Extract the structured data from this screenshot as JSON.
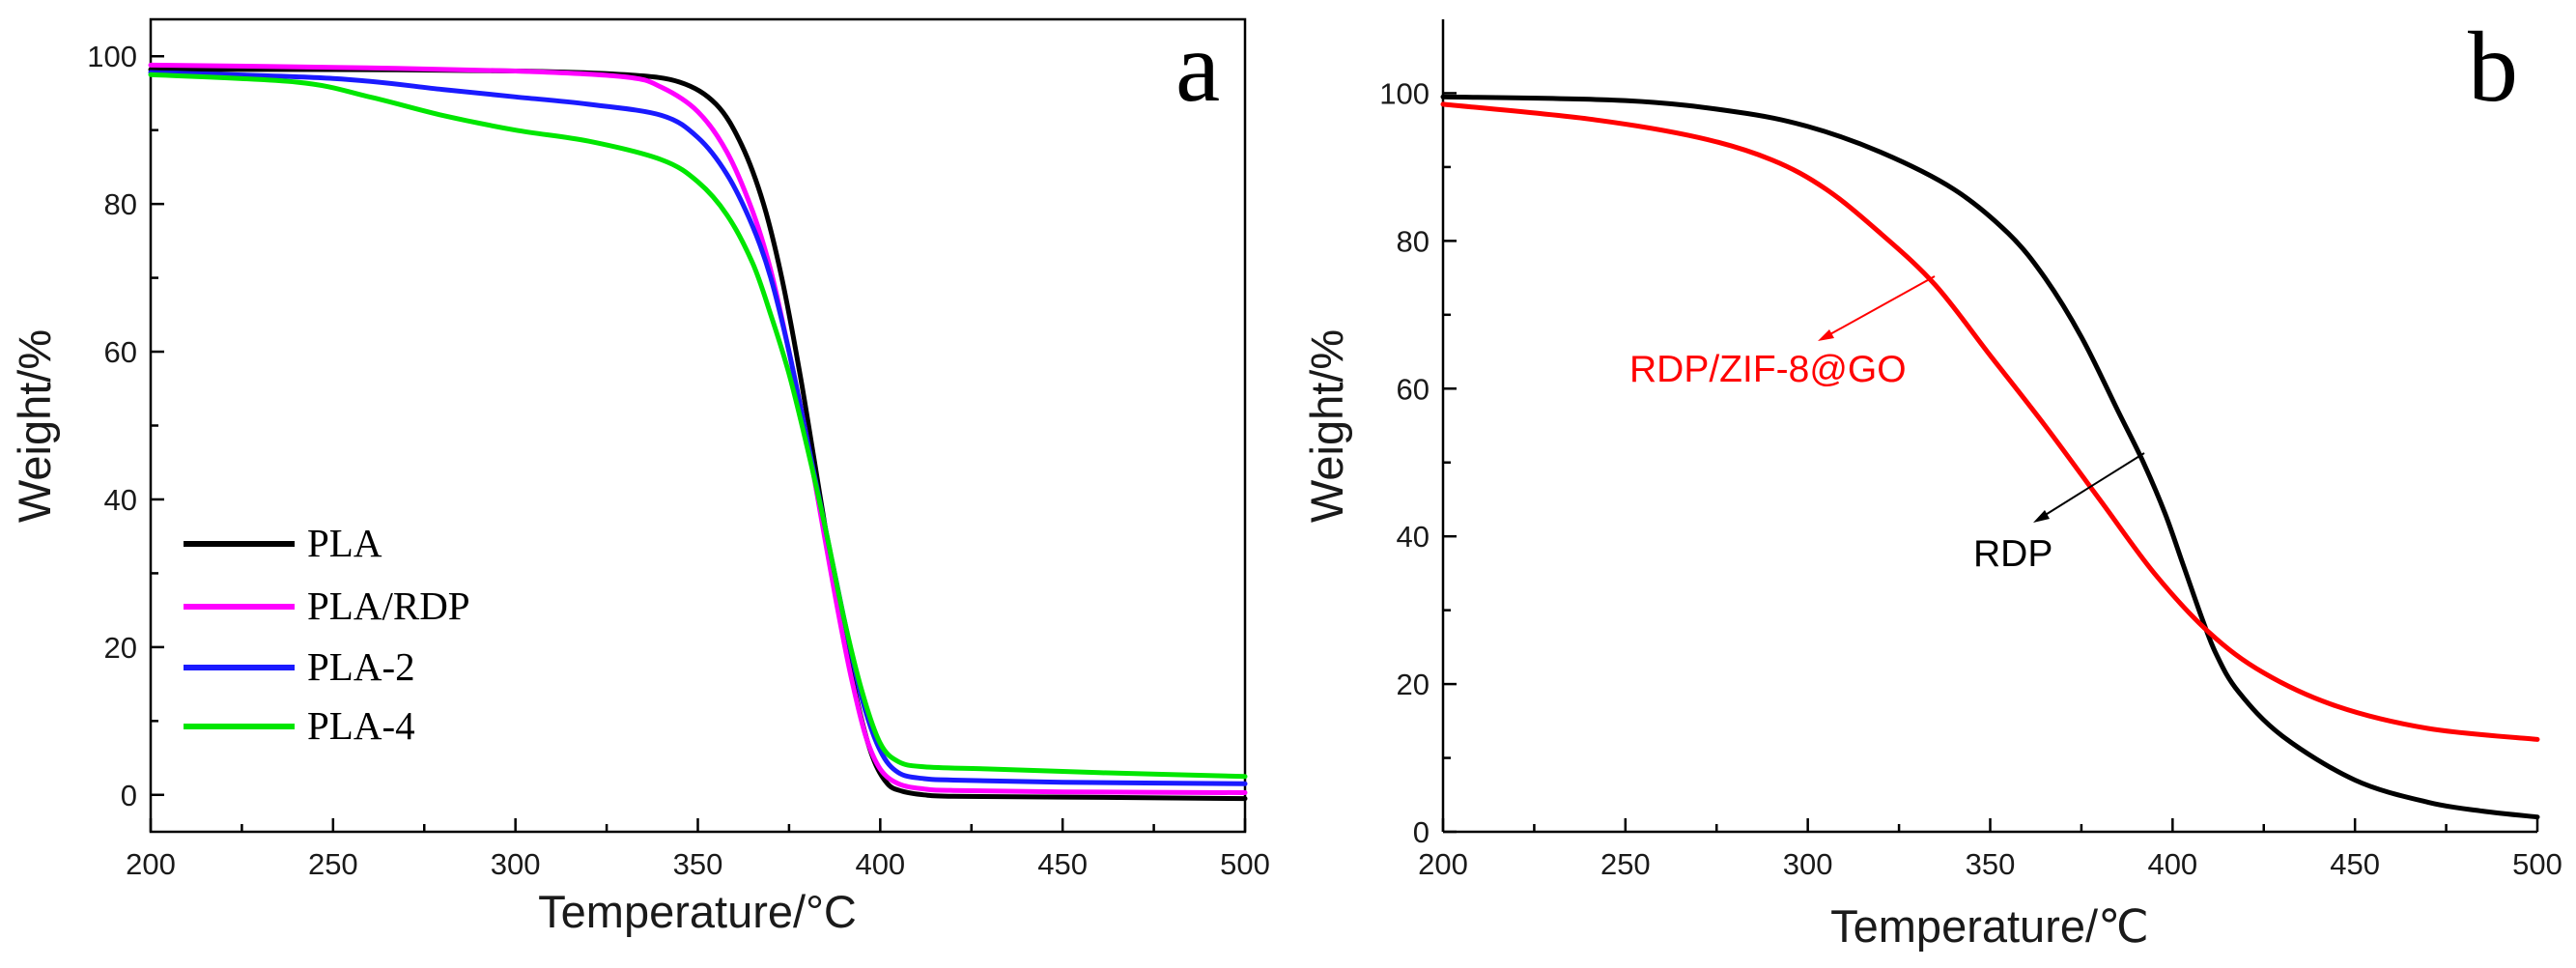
{
  "chart_data": [
    {
      "type": "line",
      "panel": "a",
      "xlabel": "Temperature/°C",
      "ylabel": "Weight/%",
      "xlim": [
        200,
        500
      ],
      "ylim": [
        -5,
        105
      ],
      "xticks": [
        200,
        250,
        300,
        350,
        400,
        450,
        500
      ],
      "yticks": [
        0,
        20,
        40,
        60,
        80,
        100
      ],
      "legend": "bottom-left",
      "grid": false,
      "series": [
        {
          "name": "PLA",
          "color": "#000000",
          "x": [
            200,
            250,
            300,
            330,
            345,
            355,
            362,
            368,
            373,
            378,
            382,
            386,
            390,
            394,
            398,
            402,
            406,
            412,
            420,
            450,
            500
          ],
          "y": [
            98.2,
            98.2,
            98.0,
            97.5,
            96.5,
            93.5,
            88.0,
            80.0,
            70.0,
            57.0,
            45.0,
            33.0,
            22.0,
            12.0,
            5.0,
            1.5,
            0.5,
            0.0,
            -0.2,
            -0.3,
            -0.5
          ]
        },
        {
          "name": "PLA/RDP",
          "color": "#ff00ff",
          "x": [
            200,
            250,
            300,
            330,
            340,
            350,
            358,
            365,
            370,
            375,
            380,
            384,
            388,
            392,
            396,
            400,
            405,
            412,
            420,
            450,
            500
          ],
          "y": [
            98.8,
            98.5,
            98.0,
            97.2,
            95.8,
            92.5,
            87.0,
            79.0,
            71.0,
            60.0,
            48.0,
            37.0,
            26.0,
            16.0,
            8.0,
            3.5,
            1.5,
            0.8,
            0.6,
            0.4,
            0.3
          ]
        },
        {
          "name": "PLA-2",
          "color": "#1a1aff",
          "x": [
            200,
            250,
            280,
            300,
            320,
            340,
            350,
            358,
            365,
            370,
            375,
            380,
            385,
            390,
            395,
            400,
            405,
            412,
            420,
            450,
            500
          ],
          "y": [
            97.8,
            97.0,
            95.5,
            94.5,
            93.5,
            92.0,
            89.0,
            84.0,
            77.0,
            70.0,
            60.0,
            48.0,
            36.0,
            24.0,
            13.0,
            6.0,
            3.0,
            2.2,
            2.0,
            1.7,
            1.5
          ]
        },
        {
          "name": "PLA-4",
          "color": "#00e600",
          "x": [
            200,
            240,
            260,
            280,
            300,
            320,
            340,
            350,
            358,
            365,
            370,
            375,
            380,
            385,
            390,
            395,
            400,
            405,
            412,
            430,
            460,
            500
          ],
          "y": [
            97.5,
            96.5,
            94.5,
            92.0,
            90.0,
            88.5,
            86.0,
            83.0,
            78.5,
            72.0,
            65.0,
            57.0,
            47.0,
            36.0,
            24.0,
            14.0,
            7.0,
            4.5,
            3.8,
            3.5,
            3.0,
            2.5
          ]
        }
      ]
    },
    {
      "type": "line",
      "panel": "b",
      "xlabel": "Temperature/℃",
      "ylabel": "Weight/%",
      "xlim": [
        200,
        500
      ],
      "ylim": [
        0,
        110
      ],
      "xticks": [
        200,
        250,
        300,
        350,
        400,
        450,
        500
      ],
      "yticks": [
        0,
        20,
        40,
        60,
        80,
        100
      ],
      "grid": false,
      "series": [
        {
          "name": "RDP",
          "color": "#000000",
          "x": [
            200,
            250,
            280,
            300,
            320,
            340,
            355,
            365,
            375,
            385,
            392,
            398,
            403,
            408,
            412,
            418,
            430,
            450,
            470,
            485,
            500
          ],
          "y": [
            99.5,
            99.0,
            97.5,
            95.5,
            92.0,
            87.0,
            81.0,
            75.0,
            67.0,
            57.0,
            50.0,
            43.0,
            36.0,
            29.0,
            24.0,
            19.0,
            13.0,
            7.0,
            4.0,
            2.8,
            2.0
          ]
        },
        {
          "name": "RDP/ZIF-8@GO",
          "color": "#ff0000",
          "x": [
            200,
            240,
            270,
            290,
            305,
            320,
            335,
            350,
            365,
            380,
            395,
            410,
            425,
            445,
            470,
            500
          ],
          "y": [
            98.5,
            96.5,
            94.0,
            91.0,
            87.0,
            81.0,
            74.0,
            64.5,
            55.0,
            45.0,
            35.0,
            27.0,
            21.5,
            17.0,
            14.0,
            12.5
          ]
        }
      ]
    }
  ],
  "legend_a": [
    "PLA",
    "PLA/RDP",
    "PLA-2",
    "PLA-4"
  ],
  "annotations_b": {
    "red_label": "RDP/ZIF-8@GO",
    "black_label": "RDP"
  },
  "panel_a": {
    "letter": "a",
    "xlabel": "Temperature/°C",
    "ylabel": "Weight/%"
  },
  "panel_b": {
    "letter": "b",
    "xlabel": "Temperature/℃",
    "ylabel": "Weight/%"
  }
}
